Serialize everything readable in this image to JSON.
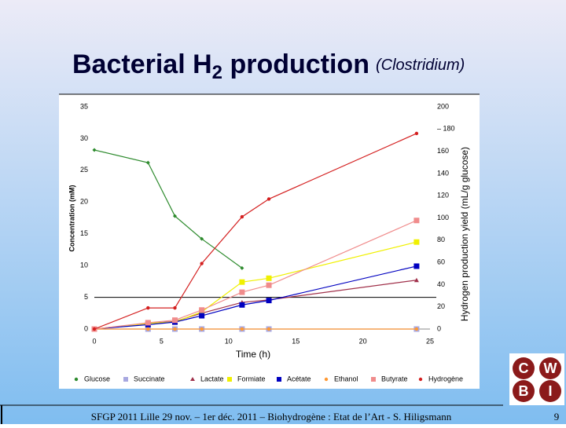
{
  "title": {
    "main": "Bacterial H",
    "sub": "2",
    "rest": " production",
    "note": "(Clostridium)"
  },
  "footer": "SFGP 2011 Lille 29 nov. – 1er déc. 2011 – Biohydrogène : Etat de l’Art - S. Hiligsmann",
  "page_number": "9",
  "logo": [
    "C",
    "W",
    "B",
    "I"
  ],
  "chart_data": {
    "type": "line",
    "xlabel": "Time (h)",
    "ylabel": "Concentration (mM)",
    "y2label": "Hydrogen production yield (mL/g glucose)",
    "x": [
      0,
      4,
      6,
      8,
      11,
      13,
      24
    ],
    "xlim": [
      0,
      25
    ],
    "xticks": [
      0,
      5,
      10,
      15,
      20,
      25
    ],
    "ylim": [
      0,
      35
    ],
    "yticks": [
      0,
      5,
      10,
      15,
      20,
      25,
      30,
      35
    ],
    "y2lim": [
      0,
      200
    ],
    "y2ticks": [
      0,
      20,
      40,
      60,
      80,
      100,
      120,
      140,
      160,
      {
        "value": 180,
        "label": "– 180"
      },
      200
    ],
    "series": [
      {
        "name": "Glucose",
        "color": "#2e8b2e",
        "marker": "diamond",
        "values": [
          28.2,
          26.2,
          17.8,
          14.2,
          9.6,
          null,
          0
        ]
      },
      {
        "name": "Succinate",
        "color": "#a8a8e0",
        "marker": "square",
        "values": [
          0,
          0,
          0,
          0,
          0,
          0,
          0
        ]
      },
      {
        "name": "Lactate",
        "color": "#a0304a",
        "marker": "triangle",
        "values": [
          0,
          0.9,
          1.2,
          2.5,
          4.2,
          4.6,
          7.7
        ]
      },
      {
        "name": "Formiate",
        "color": "#f0f000",
        "marker": "square",
        "values": [
          0,
          0.9,
          1.1,
          2.7,
          7.4,
          8.0,
          13.7
        ]
      },
      {
        "name": "Acétate",
        "color": "#0000c0",
        "marker": "square",
        "values": [
          0,
          0.7,
          1.1,
          2.1,
          3.8,
          4.5,
          9.9
        ]
      },
      {
        "name": "Ethanol",
        "color": "#ff9933",
        "marker": "circle",
        "values": [
          0,
          0,
          0,
          0,
          0,
          0,
          0
        ]
      },
      {
        "name": "Butyrate",
        "color": "#f08c8c",
        "marker": "square",
        "values": [
          0,
          1.0,
          1.4,
          3.0,
          5.8,
          6.9,
          17.1
        ]
      },
      {
        "name": "Hydrogène",
        "color": "#d42020",
        "marker": "circle",
        "axis": "y2",
        "values": [
          0,
          19,
          19,
          59,
          101,
          117,
          176
        ]
      }
    ]
  }
}
